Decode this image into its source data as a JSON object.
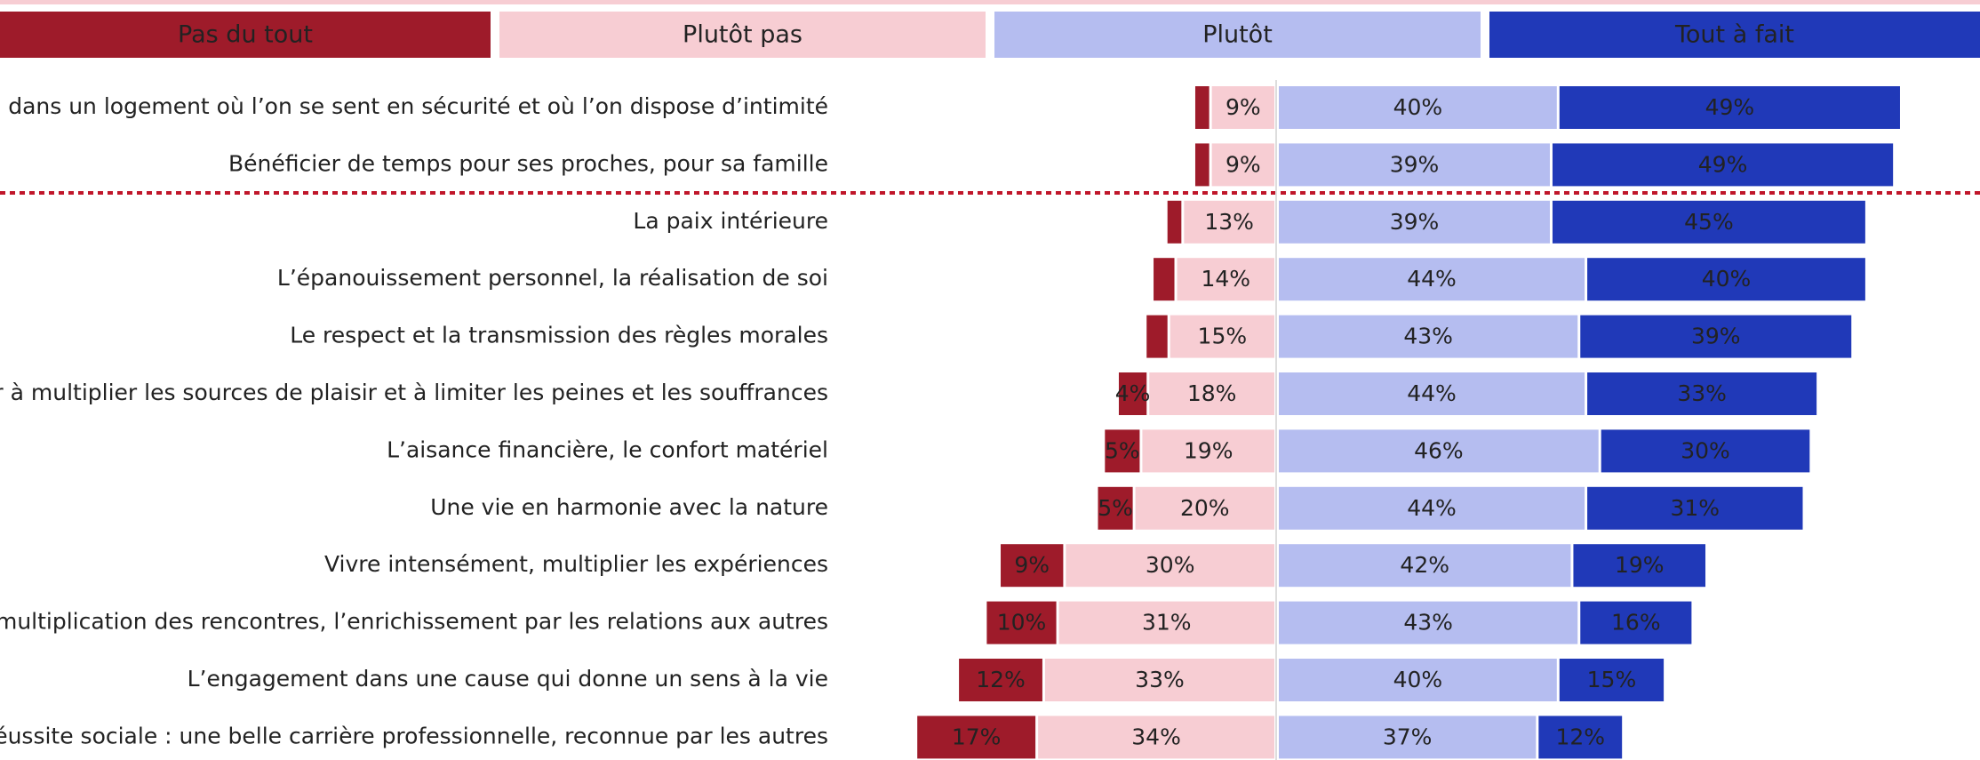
{
  "chart_data": {
    "type": "diverging_bar",
    "categories": [
      "Vivre dans un logement où l’on se sent en sécurité et où l’on dispose d’intimité",
      "Bénéficier de temps pour ses proches, pour sa famille",
      "La paix intérieure",
      "L’épanouissement personnel, la réalisation de soi",
      "Le respect et la transmission des règles morales",
      "Réussir à multiplier les sources de plaisir et à limiter les peines et les souffrances",
      "L’aisance financière, le confort matériel",
      "Une vie en harmonie avec la nature",
      "Vivre intensément, multiplier les expériences",
      "La multiplication des rencontres, l’enrichissement par les relations aux autres",
      "L’engagement dans une cause qui donne un sens à la vie",
      "La réussite sociale : une belle carrière professionnelle, reconnue par les autres"
    ],
    "series": [
      {
        "name": "Pas du tout",
        "color": "#9e1b2a",
        "side": "negative",
        "values": [
          2,
          2,
          2,
          3,
          3,
          4,
          5,
          5,
          9,
          10,
          12,
          17
        ],
        "value_labels": [
          null,
          null,
          null,
          null,
          null,
          "4%",
          "5%",
          "5%",
          "9%",
          "10%",
          "12%",
          "17%"
        ]
      },
      {
        "name": "Plutôt pas",
        "color": "#f7cdd3",
        "side": "negative",
        "values": [
          9,
          9,
          13,
          14,
          15,
          18,
          19,
          20,
          30,
          31,
          33,
          34
        ],
        "value_labels": [
          "9%",
          "9%",
          "13%",
          "14%",
          "15%",
          "18%",
          "19%",
          "20%",
          "30%",
          "31%",
          "33%",
          "34%"
        ]
      },
      {
        "name": "Plutôt",
        "color": "#b5bdf0",
        "side": "positive",
        "values": [
          40,
          39,
          39,
          44,
          43,
          44,
          46,
          44,
          42,
          43,
          40,
          37
        ],
        "value_labels": [
          "40%",
          "39%",
          "39%",
          "44%",
          "43%",
          "44%",
          "46%",
          "44%",
          "42%",
          "43%",
          "40%",
          "37%"
        ]
      },
      {
        "name": "Tout à fait",
        "color": "#2039b8",
        "side": "positive",
        "values": [
          49,
          49,
          45,
          40,
          39,
          33,
          30,
          31,
          19,
          16,
          15,
          12
        ],
        "value_labels": [
          "49%",
          "49%",
          "45%",
          "40%",
          "39%",
          "33%",
          "30%",
          "31%",
          "19%",
          "16%",
          "15%",
          "12%"
        ]
      }
    ]
  }
}
